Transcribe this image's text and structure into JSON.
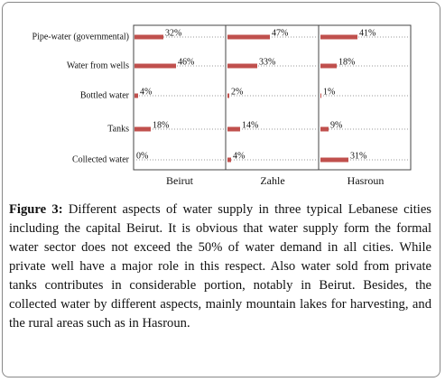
{
  "chart_data": {
    "type": "bar",
    "orientation": "horizontal",
    "categories": [
      "Pipe-water (governmental)",
      "Water from wells",
      "Bottled water",
      "Tanks",
      "Collected water"
    ],
    "series": [
      {
        "name": "Beirut",
        "color": "#c0504d",
        "values": [
          32,
          46,
          4,
          18,
          0
        ],
        "value_labels": [
          "32%",
          "46%",
          "4%",
          "18%",
          "0%"
        ]
      },
      {
        "name": "Zahle",
        "color": "#c0504d",
        "values": [
          47,
          33,
          2,
          14,
          4
        ],
        "value_labels": [
          "47%",
          "33%",
          "2%",
          "14%",
          "4%"
        ]
      },
      {
        "name": "Hasroun",
        "color": "#c0504d",
        "values": [
          41,
          18,
          1,
          9,
          31
        ],
        "value_labels": [
          "41%",
          "18%",
          "1%",
          "9%",
          "31%"
        ]
      }
    ],
    "xlim": [
      0,
      100
    ],
    "grid": true
  },
  "caption": {
    "label": "Figure 3:",
    "text": "Different aspects of water supply in three typical Lebanese cities including the capital Beirut. It is obvious that water supply form the formal water sector does not exceed the 50% of water demand in all cities. While private well have a major role in this respect. Also water sold from private tanks contributes in considerable portion, notably in Beirut. Besides, the collected water by different aspects, mainly mountain lakes for harvesting, and the rural areas such as in Hasroun."
  }
}
